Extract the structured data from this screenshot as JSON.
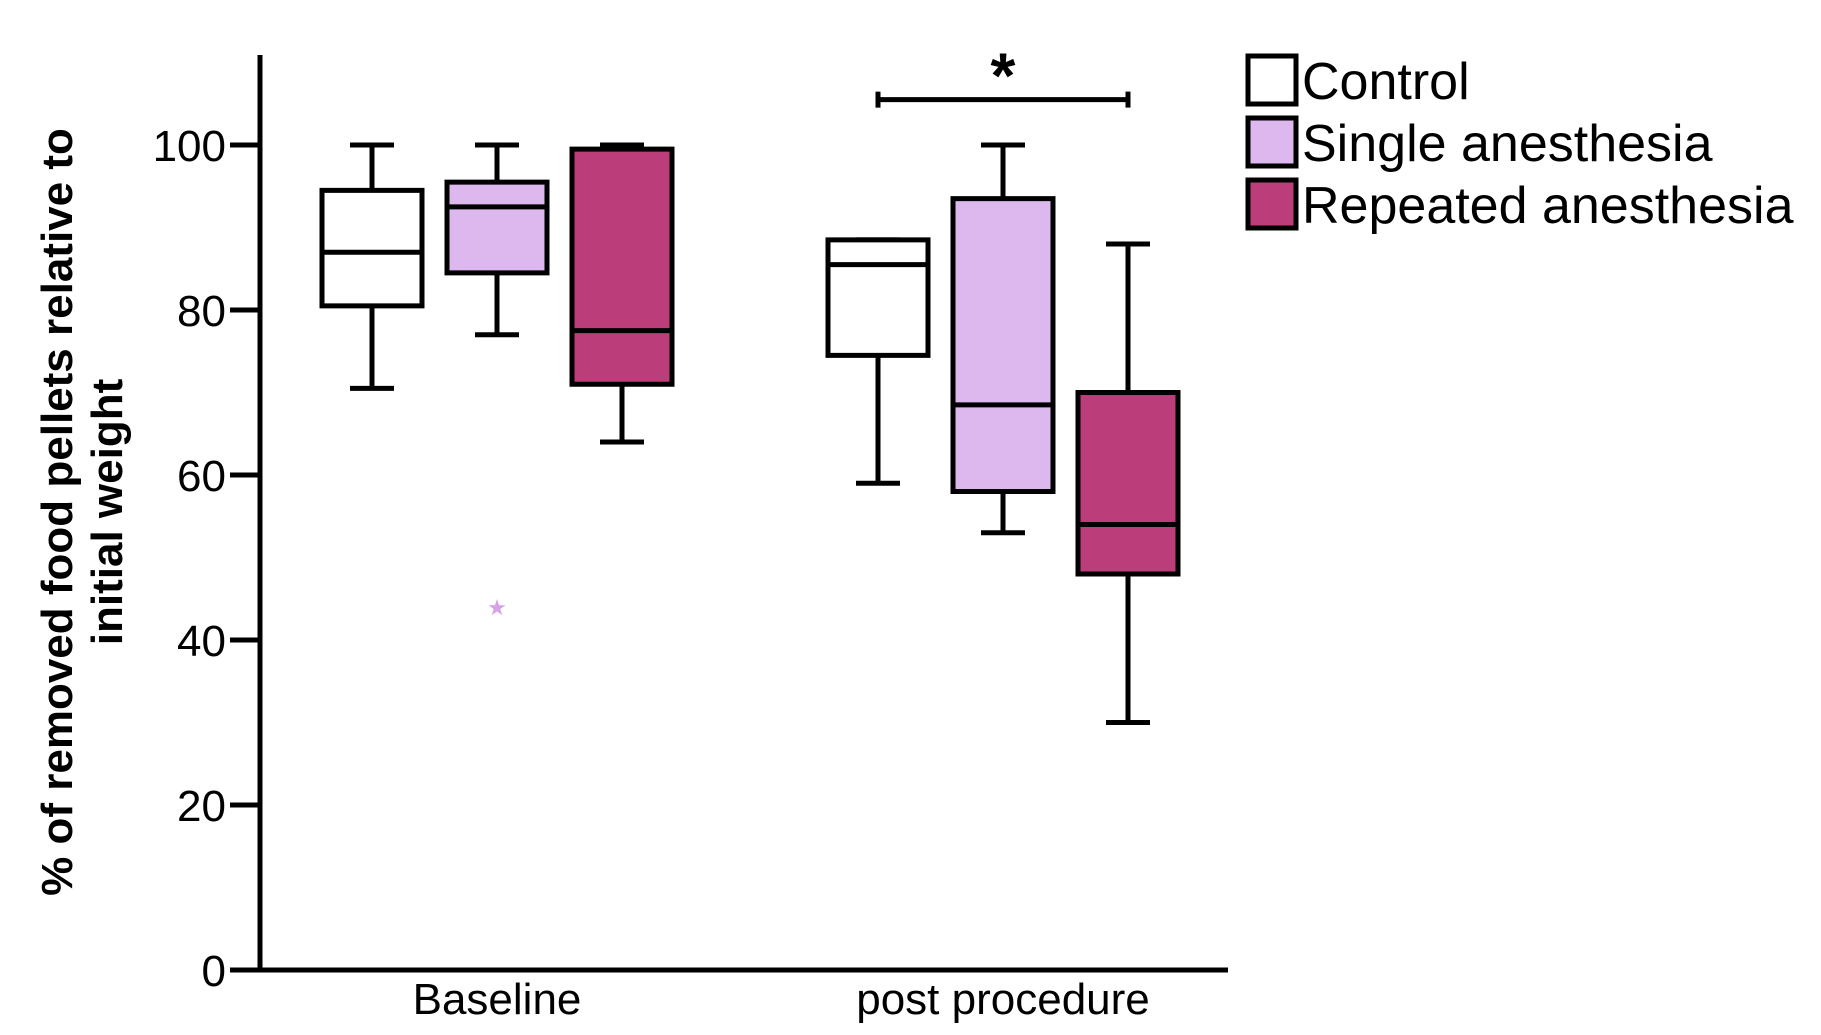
{
  "chart_data": {
    "type": "boxplot",
    "title": "",
    "xlabel": "",
    "ylabel_line1": "% of removed food pellets relative to",
    "ylabel_line2": "initial weight",
    "ylim": [
      0,
      110
    ],
    "yticks": [
      0,
      20,
      40,
      60,
      80,
      100
    ],
    "ytick_labels": [
      "0",
      "20",
      "40",
      "60",
      "80",
      "100"
    ],
    "categories": [
      "Baseline",
      "post procedure"
    ],
    "groups": [
      {
        "name": "Control",
        "color": "#ffffff"
      },
      {
        "name": "Single anesthesia",
        "color": "#dcb8ee"
      },
      {
        "name": "Repeated anesthesia",
        "color": "#bb3e7a"
      }
    ],
    "boxes": [
      {
        "category": "Baseline",
        "group": "Control",
        "min": 70.5,
        "q1": 80.5,
        "median": 87,
        "q3": 94.5,
        "max": 100
      },
      {
        "category": "Baseline",
        "group": "Single anesthesia",
        "min": 77,
        "q1": 84.5,
        "median": 92.5,
        "q3": 95.5,
        "max": 100,
        "outliers": [
          44
        ]
      },
      {
        "category": "Baseline",
        "group": "Repeated anesthesia",
        "min": 64,
        "q1": 71,
        "median": 77.5,
        "q3": 99.5,
        "max": 100
      },
      {
        "category": "post procedure",
        "group": "Control",
        "min": 59,
        "q1": 74.5,
        "median": 85.5,
        "q3": 88.5,
        "max": 88.5
      },
      {
        "category": "post procedure",
        "group": "Single anesthesia",
        "min": 53,
        "q1": 58,
        "median": 68.5,
        "q3": 93.5,
        "max": 100
      },
      {
        "category": "post procedure",
        "group": "Repeated anesthesia",
        "min": 30,
        "q1": 48,
        "median": 54,
        "q3": 70,
        "max": 88
      }
    ],
    "annotations": [
      {
        "text": "*",
        "category": "post procedure",
        "from_group": "Control",
        "to_group": "Repeated anesthesia",
        "y": 105.5
      }
    ],
    "legend_position": "top-right"
  }
}
